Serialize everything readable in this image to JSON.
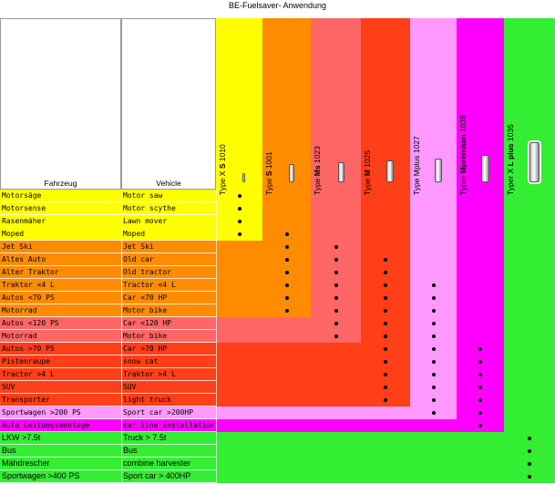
{
  "title": "BE-Fuelsaver- Anwendung",
  "header": {
    "col_de": "Fahrzeug",
    "col_en": "Vehicle"
  },
  "types": [
    {
      "prefix": "Type X ",
      "strong": "S",
      "suffix": " 1010",
      "color": "#ffff00"
    },
    {
      "prefix": "Type ",
      "strong": "S",
      "suffix": " 1001",
      "color": "#ff8c00"
    },
    {
      "prefix": "Type ",
      "strong": "Ms",
      "suffix": " 1023",
      "color": "#ff6666"
    },
    {
      "prefix": "Type ",
      "strong": "M",
      "suffix": " 1025",
      "color": "#ff3f17"
    },
    {
      "prefix": "Type ",
      "strong": "",
      "suffix": "Mplus 1027",
      "color": "#ff99ff"
    },
    {
      "prefix": "Typer ",
      "strong": "Mpremium",
      "suffix": " 1028",
      "color": "#ff00ff"
    },
    {
      "prefix": "Typer X ",
      "strong": "L plus",
      "suffix": " 1035",
      "color": "#33ee33"
    }
  ],
  "rows": [
    {
      "de": "Motorsäge",
      "en": "Motor saw",
      "group": 0,
      "dots": [
        0
      ]
    },
    {
      "de": "Motorsense",
      "en": "Motor scythe",
      "group": 0,
      "dots": [
        0
      ]
    },
    {
      "de": "Rasenmäher",
      "en": "Lawn mover",
      "group": 0,
      "dots": [
        0
      ]
    },
    {
      "de": "Moped",
      "en": "Moped",
      "group": 0,
      "dots": [
        0,
        1
      ]
    },
    {
      "de": "Jet Ski",
      "en": "Jet Ski",
      "group": 1,
      "dots": [
        1,
        2
      ]
    },
    {
      "de": "Altes Auto",
      "en": "Old car",
      "group": 1,
      "dots": [
        1,
        2,
        3
      ]
    },
    {
      "de": "Alter Traktor",
      "en": "Old tractor",
      "group": 1,
      "dots": [
        1,
        2,
        3
      ]
    },
    {
      "de": "Traktor <4 L",
      "en": "Tractor <4 L",
      "group": 1,
      "dots": [
        1,
        2,
        3,
        4
      ]
    },
    {
      "de": "Autos <70 PS",
      "en": "Car <70 HP",
      "group": 1,
      "dots": [
        1,
        2,
        3,
        4
      ]
    },
    {
      "de": "Motorrad",
      "en": "Motor bike",
      "group": 1,
      "dots": [
        1,
        2,
        3,
        4
      ]
    },
    {
      "de": "Autos <120 PS",
      "en": "Car <120 HP",
      "group": 2,
      "dots": [
        2,
        3,
        4
      ]
    },
    {
      "de": "Motorrad",
      "en": "Motor bike",
      "group": 2,
      "dots": [
        2,
        3,
        4
      ]
    },
    {
      "de": "Autos >70 PS",
      "en": "Car >70 HP",
      "group": 3,
      "dots": [
        3,
        4,
        5
      ]
    },
    {
      "de": "Pistenraupe",
      "en": "snow cat",
      "group": 3,
      "dots": [
        3,
        4,
        5
      ]
    },
    {
      "de": "Tractor >4 L",
      "en": "Traktor >4 L",
      "group": 3,
      "dots": [
        3,
        4,
        5
      ]
    },
    {
      "de": "SUV",
      "en": "SUV",
      "group": 3,
      "dots": [
        3,
        4,
        5
      ]
    },
    {
      "de": "Transporter",
      "en": "light truck",
      "group": 3,
      "dots": [
        3,
        4,
        5
      ]
    },
    {
      "de": "Sportwagen >200 PS",
      "en": "Sport car >200HP",
      "group": 4,
      "dots": [
        4,
        5
      ]
    },
    {
      "de": "Auto Leitungsmontage",
      "en": "car line installation",
      "group": 5,
      "dots": [
        5
      ]
    },
    {
      "de": "LKW >7.5t",
      "en": "Truck > 7.5t",
      "group": 6,
      "dots": [
        6
      ],
      "sans": true
    },
    {
      "de": "Bus",
      "en": "Bus",
      "group": 6,
      "dots": [
        6
      ],
      "sans": true
    },
    {
      "de": "Mähdrescher",
      "en": "combine harvester",
      "group": 6,
      "dots": [
        6
      ],
      "sans": true
    },
    {
      "de": "Sportwagen >400 PS",
      "en": "Sport car > 400HP",
      "group": 6,
      "dots": [
        6
      ],
      "sans": true
    }
  ]
}
